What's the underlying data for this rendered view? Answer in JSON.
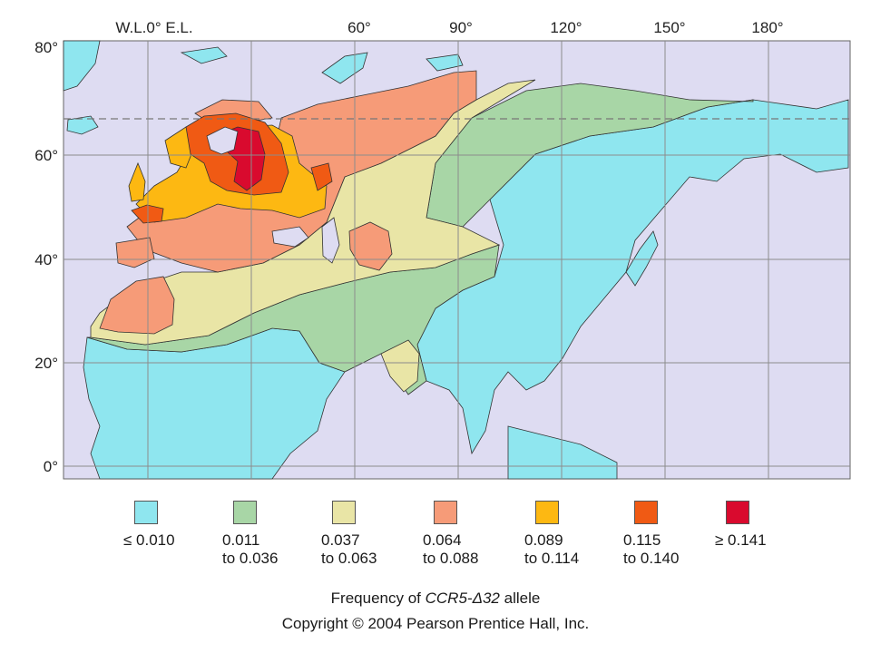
{
  "map": {
    "longitude_labels": [
      "W.L.0° E.L.",
      "60°",
      "90°",
      "120°",
      "150°",
      "180°"
    ],
    "latitude_labels": [
      "80°",
      "60°",
      "40°",
      "20°",
      "0°"
    ],
    "colors": {
      "ocean": "#dedcf2",
      "grid": "#8c8c8c",
      "le_0_010": "#8fe6ef",
      "r_011_036": "#a8d6a6",
      "r_037_063": "#e9e5a6",
      "r_064_088": "#f69b78",
      "r_089_114": "#fdb812",
      "r_115_140": "#f05a14",
      "ge_0_141": "#d90a2e",
      "border": "#333333"
    }
  },
  "legend": [
    {
      "label": "≤ 0.010",
      "color": "#8fe6ef"
    },
    {
      "label": "0.011\nto 0.036",
      "color": "#a8d6a6"
    },
    {
      "label": "0.037\nto 0.063",
      "color": "#e9e5a6"
    },
    {
      "label": "0.064\nto 0.088",
      "color": "#f69b78"
    },
    {
      "label": "0.089\nto 0.114",
      "color": "#fdb812"
    },
    {
      "label": "0.115\nto 0.140",
      "color": "#f05a14"
    },
    {
      "label": "≥ 0.141",
      "color": "#d90a2e"
    }
  ],
  "caption": {
    "prefix": "Frequency of ",
    "gene": "CCR5-Δ32",
    "suffix": " allele",
    "copyright": "Copyright © 2004 Pearson Prentice Hall, Inc."
  }
}
